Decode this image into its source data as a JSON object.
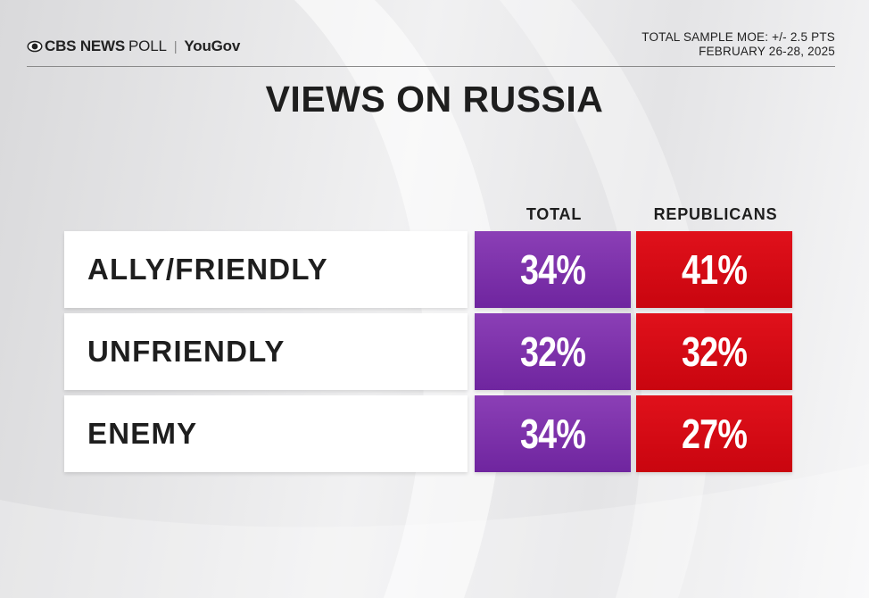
{
  "header": {
    "brand_cbs": "CBS NEWS",
    "brand_poll": "POLL",
    "brand_separator": "|",
    "brand_yougov": "YouGov",
    "moe": "TOTAL SAMPLE MOE: +/- 2.5 PTS",
    "dates": "FEBRUARY 26-28, 2025",
    "logo_icon": "cbs-eye-icon"
  },
  "title": "VIEWS ON RUSSIA",
  "columns": [
    "TOTAL",
    "REPUBLICANS"
  ],
  "rows": [
    {
      "label": "ALLY/FRIENDLY",
      "total": "34%",
      "republicans": "41%"
    },
    {
      "label": "UNFRIENDLY",
      "total": "32%",
      "republicans": "32%"
    },
    {
      "label": "ENEMY",
      "total": "34%",
      "republicans": "27%"
    }
  ],
  "colors": {
    "total": "#7b2fae",
    "republicans": "#d80a14",
    "text": "#1e1e1e"
  },
  "chart_data": {
    "type": "table",
    "title": "VIEWS ON RUSSIA",
    "categories": [
      "ALLY/FRIENDLY",
      "UNFRIENDLY",
      "ENEMY"
    ],
    "series": [
      {
        "name": "TOTAL",
        "values": [
          34,
          32,
          34
        ]
      },
      {
        "name": "REPUBLICANS",
        "values": [
          41,
          32,
          27
        ]
      }
    ],
    "unit": "%"
  }
}
